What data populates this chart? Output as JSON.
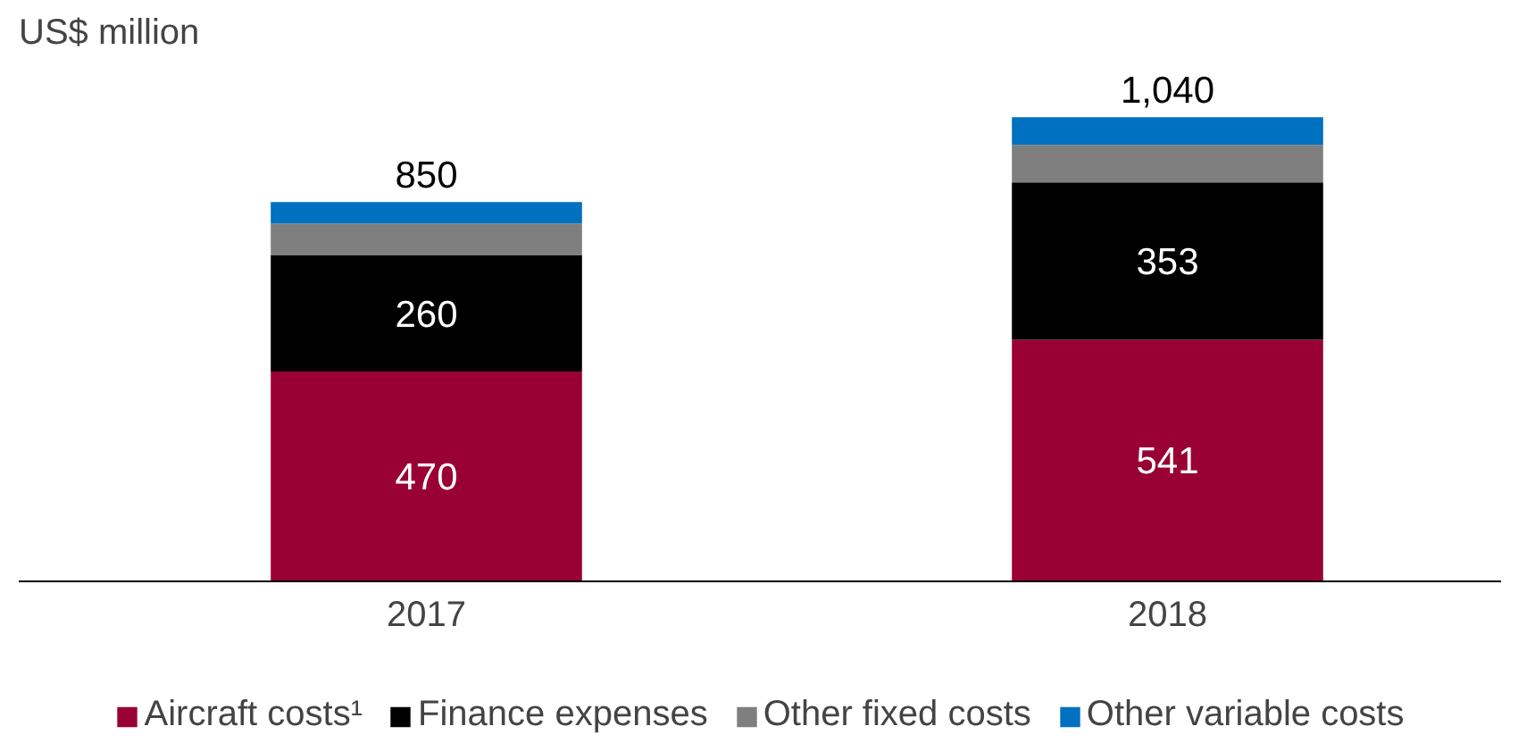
{
  "chart_data": {
    "type": "bar",
    "stacked": true,
    "ylabel": "US$ million",
    "categories": [
      "2017",
      "2018"
    ],
    "series": [
      {
        "name": "Aircraft costs¹",
        "color": "#990033",
        "values": [
          470,
          541
        ],
        "value_labels": [
          "470",
          "541"
        ]
      },
      {
        "name": "Finance expenses",
        "color": "#000000",
        "values": [
          260,
          353
        ],
        "value_labels": [
          "260",
          "353"
        ]
      },
      {
        "name": "Other fixed costs",
        "color": "#7f7f7f",
        "values": [
          72,
          84
        ],
        "value_labels": [
          null,
          null
        ]
      },
      {
        "name": "Other variable costs",
        "color": "#0070c0",
        "values": [
          48,
          62
        ],
        "value_labels": [
          null,
          null
        ]
      }
    ],
    "totals": [
      "850",
      "1,040"
    ],
    "legend": "bottom"
  }
}
